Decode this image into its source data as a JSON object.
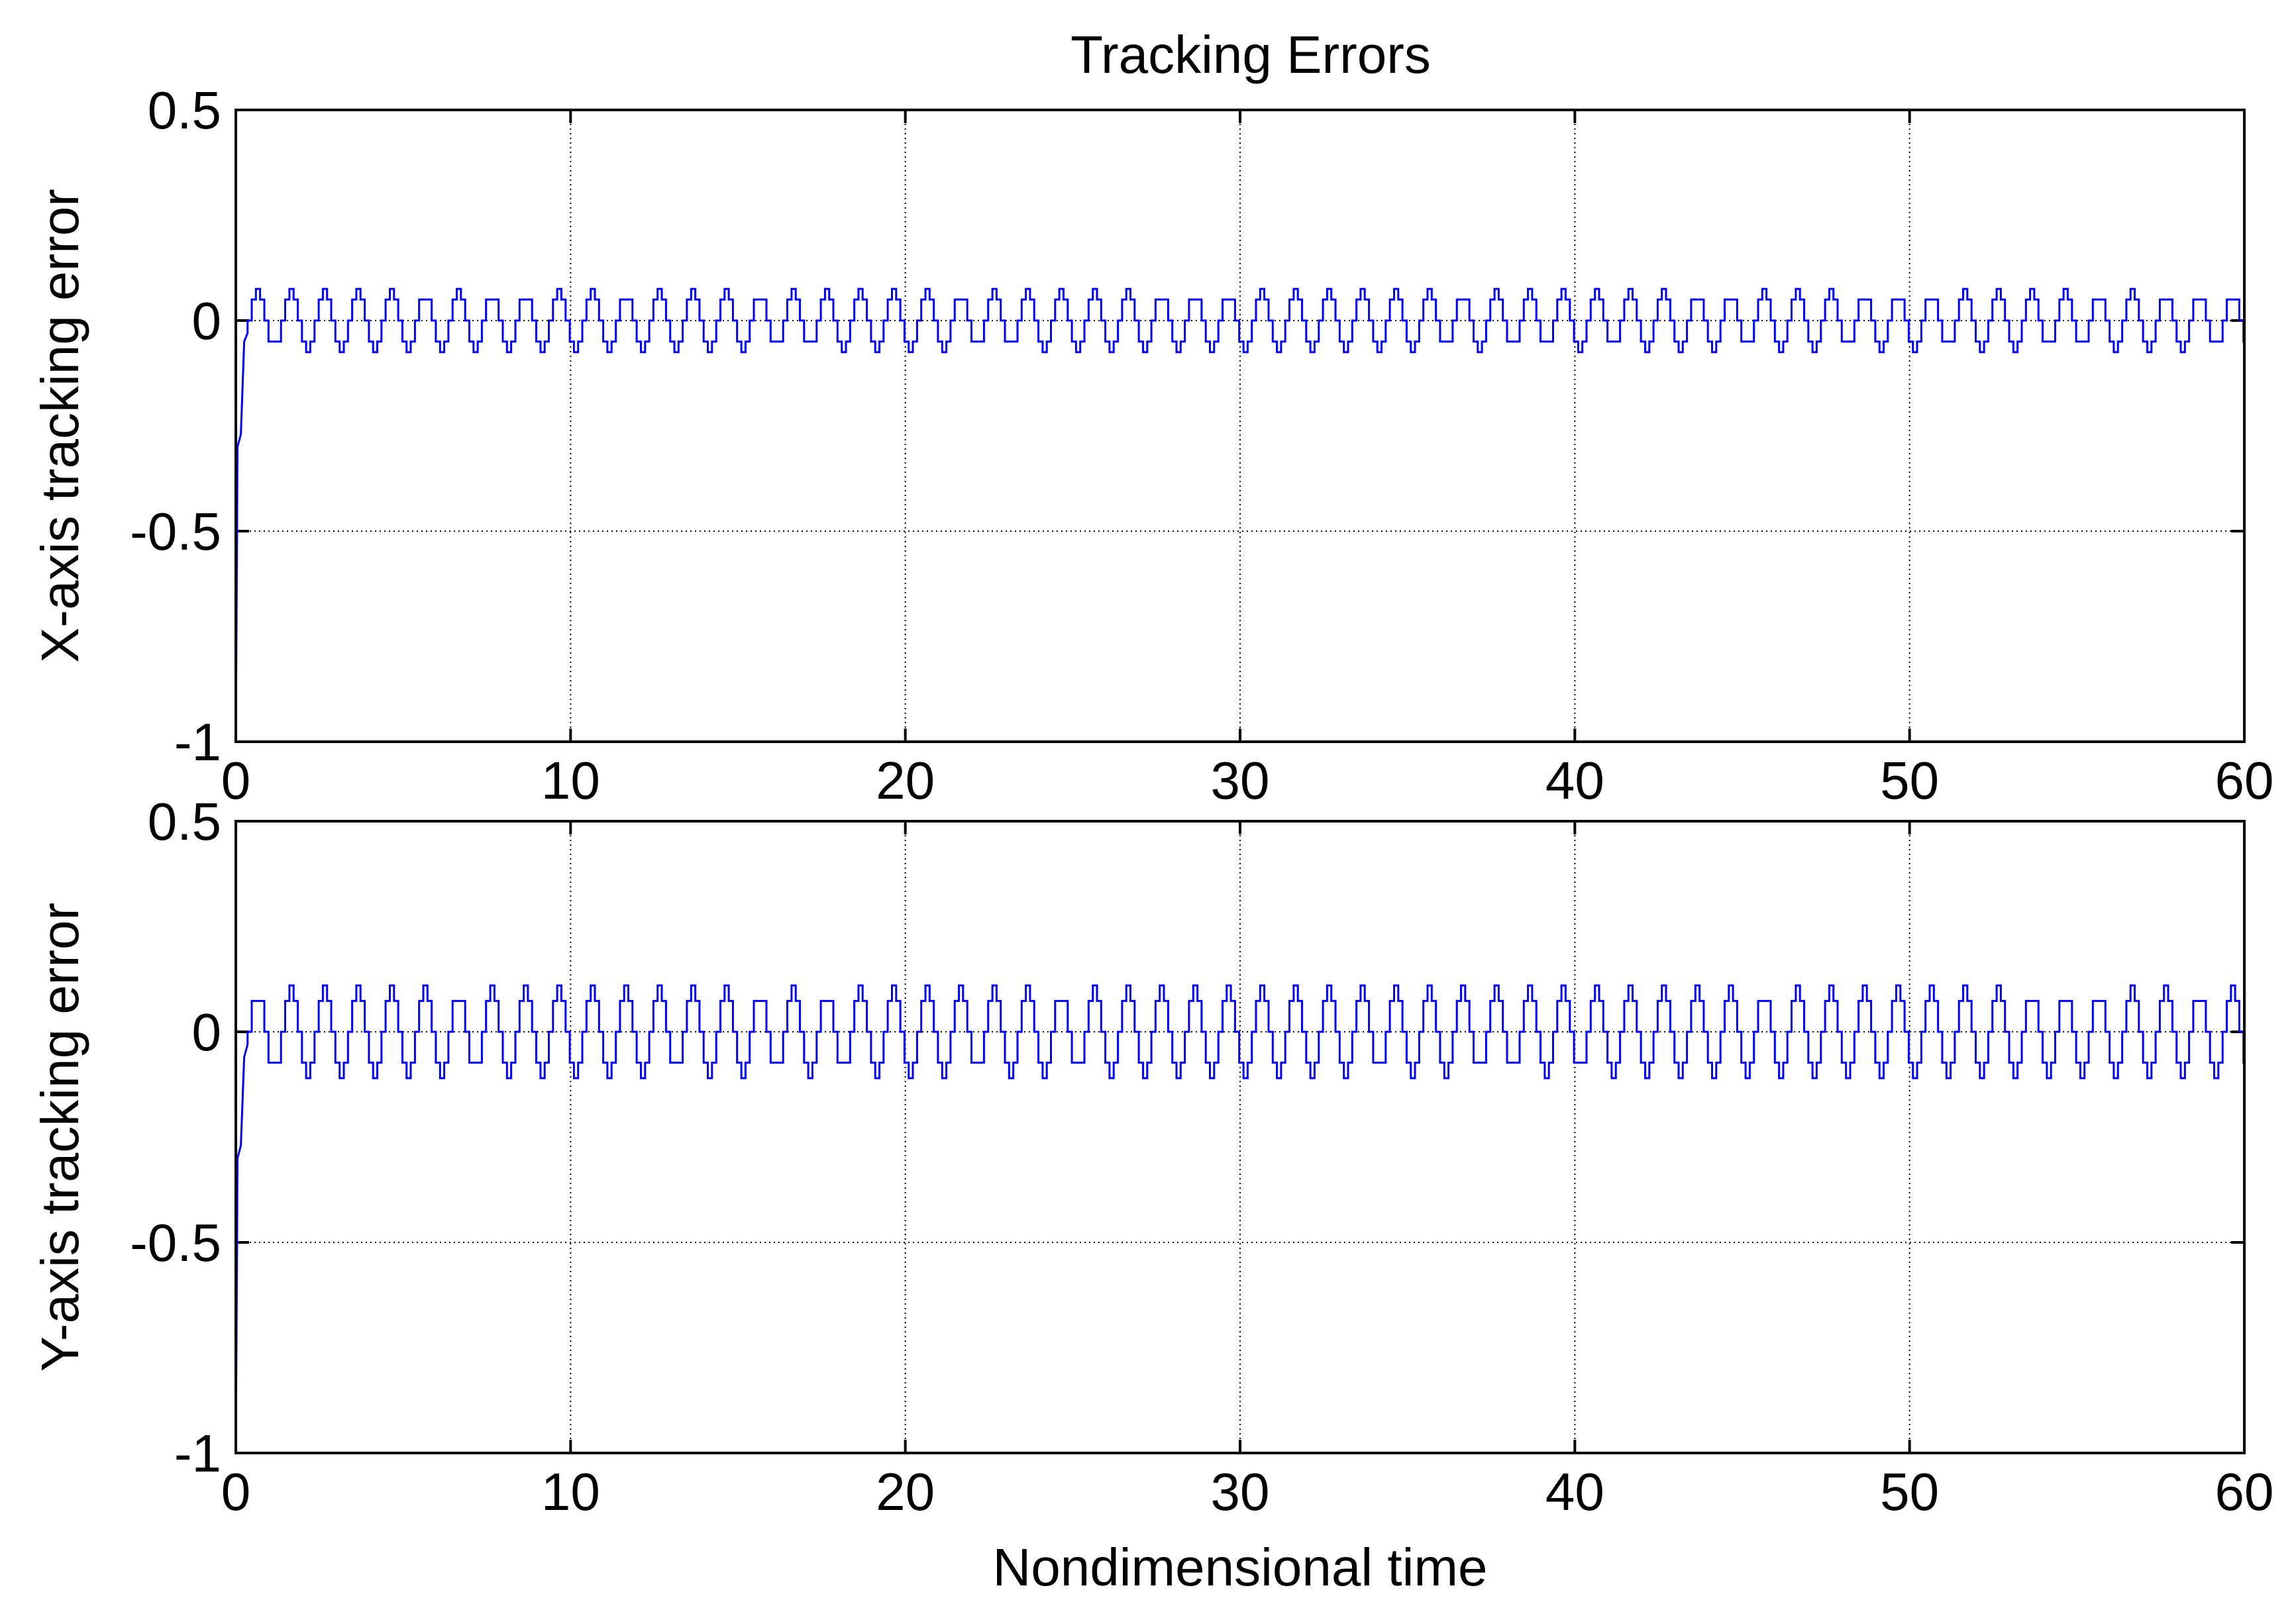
{
  "chart_data": [
    {
      "type": "line",
      "title": "Tracking Errors",
      "xlabel": "",
      "ylabel": "X-axis tracking error",
      "xlim": [
        0,
        60
      ],
      "ylim": [
        -1,
        0.5
      ],
      "xticks": [
        0,
        10,
        20,
        30,
        40,
        50,
        60
      ],
      "yticks": [
        -1,
        -0.5,
        0,
        0.5
      ],
      "xtick_labels": [
        "0",
        "10",
        "20",
        "30",
        "40",
        "50",
        "60"
      ],
      "ytick_labels": [
        "-1",
        "-0.5",
        "0",
        "0.5"
      ],
      "grid": true,
      "grid_style": "dotted",
      "series": [
        {
          "color": "#0000ff",
          "initial": [
            [
              0,
              -1.0
            ],
            [
              0.05,
              -0.3
            ],
            [
              0.15,
              -0.27
            ],
            [
              0.25,
              -0.05
            ],
            [
              0.35,
              -0.03
            ]
          ],
          "oscillation": {
            "amplitude": 0.075,
            "period": 1.0,
            "mean": 0.0,
            "shape": "stair-step square wave"
          }
        }
      ]
    },
    {
      "type": "line",
      "title": "",
      "xlabel": "Nondimensional time",
      "ylabel": "Y-axis tracking error",
      "xlim": [
        0,
        60
      ],
      "ylim": [
        -1,
        0.5
      ],
      "xticks": [
        0,
        10,
        20,
        30,
        40,
        50,
        60
      ],
      "yticks": [
        -1,
        -0.5,
        0,
        0.5
      ],
      "xtick_labels": [
        "0",
        "10",
        "20",
        "30",
        "40",
        "50",
        "60"
      ],
      "ytick_labels": [
        "-1",
        "-0.5",
        "0",
        "0.5"
      ],
      "grid": true,
      "grid_style": "dotted",
      "series": [
        {
          "color": "#0000ff",
          "initial": [
            [
              0,
              -1.0
            ],
            [
              0.05,
              -0.3
            ],
            [
              0.15,
              -0.27
            ],
            [
              0.25,
              -0.06
            ],
            [
              0.35,
              -0.03
            ]
          ],
          "oscillation": {
            "amplitude": 0.11,
            "period": 1.0,
            "mean": 0.0,
            "shape": "stair-step square wave"
          }
        }
      ]
    }
  ]
}
